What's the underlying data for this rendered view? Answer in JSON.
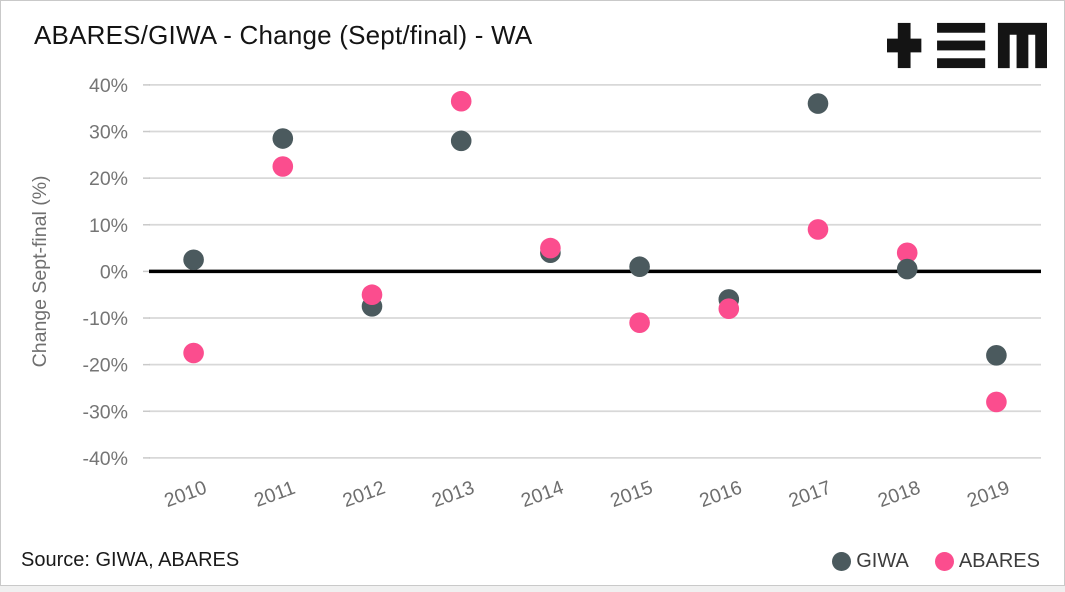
{
  "header": {
    "title": "ABARES/GIWA - Change (Sept/final) - WA",
    "logo_name": "tem-logo"
  },
  "chart_data": {
    "type": "scatter",
    "title": "ABARES/GIWA - Change (Sept/final) - WA",
    "xlabel": "",
    "ylabel": "Change Sept-final (%)",
    "categories": [
      "2010",
      "2011",
      "2012",
      "2013",
      "2014",
      "2015",
      "2016",
      "2017",
      "2018",
      "2019"
    ],
    "series": [
      {
        "name": "GIWA",
        "color": "#4b5a5e",
        "values": [
          2.5,
          28.5,
          -7.5,
          28,
          4,
          1,
          -6,
          36,
          0.5,
          -18
        ]
      },
      {
        "name": "ABARES",
        "color": "#fb4d8e",
        "values": [
          -17.5,
          22.5,
          -5,
          36.5,
          5,
          -11,
          -8,
          9,
          4,
          -28
        ]
      }
    ],
    "ylim": [
      -40,
      40
    ],
    "ytick_step": 10,
    "ytick_labels": [
      "40%",
      "30%",
      "20%",
      "10%",
      "0%",
      "-10%",
      "-20%",
      "-30%",
      "-40%"
    ],
    "grid": true,
    "zero_line": true,
    "legend_position": "bottom-right",
    "point_on_top_exceptions": {
      "2018": "GIWA"
    },
    "colors": {
      "grid": "#d8d8d8",
      "zero_line": "#000000",
      "axis_text": "#757575",
      "title_text": "#141414"
    }
  },
  "footer": {
    "source": "Source: GIWA, ABARES"
  }
}
